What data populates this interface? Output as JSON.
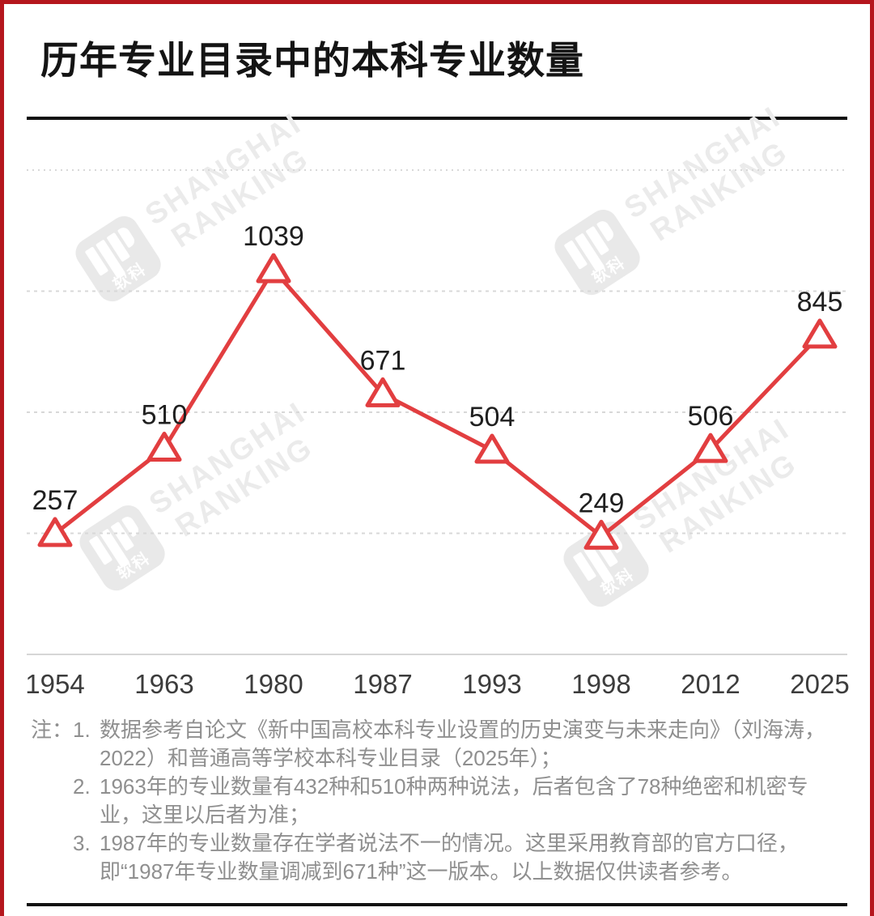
{
  "frame": {
    "border_color": "#b5161d"
  },
  "header": {
    "title": "历年专业目录中的本科专业数量"
  },
  "watermark": {
    "brand_line1": "SHANGHAI",
    "brand_line2": "RANKING",
    "logo_text": "软科"
  },
  "chart_data": {
    "type": "line",
    "title": "历年专业目录中的本科专业数量",
    "categories": [
      "1954",
      "1963",
      "1980",
      "1987",
      "1993",
      "1998",
      "2012",
      "2025"
    ],
    "values": [
      257,
      510,
      1039,
      671,
      504,
      249,
      506,
      845
    ],
    "series_color": "#e23e40",
    "marker": "open-triangle",
    "marker_fill": "#ffffff",
    "grid": "horizontal-dashed",
    "gridline_color": "#d8d8d8",
    "axis_line_color": "#d6d6d6",
    "data_label_color": "#1f1f1f",
    "tick_label_color": "#3c3c3c",
    "legend": "none"
  },
  "notes": {
    "prefix": "注：",
    "items": [
      "数据参考自论文《新中国高校本科专业设置的历史演变与未来走向》（刘海涛，2022）和普通高等学校本科专业目录（2025年）；",
      "1963年的专业数量有432种和510种两种说法，后者包含了78种绝密和机密专业，这里以后者为准；",
      "1987年的专业数量存在学者说法不一的情况。这里采用教育部的官方口径，即“1987年专业数量调减到671种”这一版本。以上数据仅供读者参考。"
    ]
  }
}
